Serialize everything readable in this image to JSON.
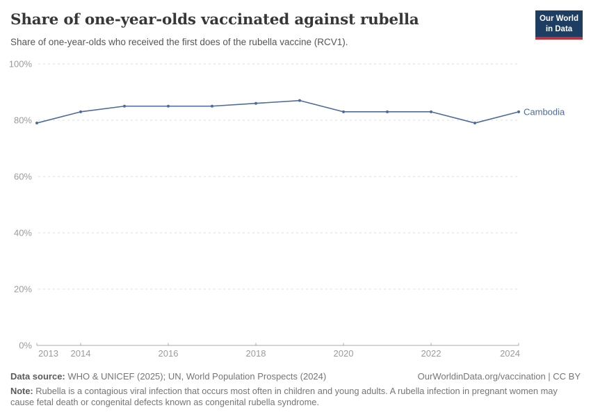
{
  "header": {
    "title": "Share of one-year-olds vaccinated against rubella",
    "subtitle": "Share of one-year-olds who received the first does of the rubella vaccine (RCV1).",
    "logo_line1": "Our World",
    "logo_line2": "in Data",
    "logo_bg_color": "#1d3d63",
    "logo_accent_color": "#c2303c"
  },
  "chart_data": {
    "type": "line",
    "title": "Share of one-year-olds vaccinated against rubella",
    "x": [
      2013,
      2014,
      2015,
      2016,
      2017,
      2018,
      2019,
      2020,
      2021,
      2022,
      2023,
      2024
    ],
    "series": [
      {
        "name": "Cambodia",
        "color": "#4c6a9c",
        "values": [
          79,
          83,
          85,
          85,
          85,
          86,
          87,
          83,
          83,
          83,
          79,
          83
        ]
      }
    ],
    "unit": "%",
    "xlabel": "",
    "ylabel": "",
    "xlim": [
      2013,
      2024
    ],
    "ylim": [
      0,
      100
    ],
    "x_ticks": [
      2013,
      2014,
      2016,
      2018,
      2020,
      2022,
      2024
    ],
    "y_ticks": [
      0,
      20,
      40,
      60,
      80,
      100
    ],
    "y_tick_labels": [
      "0%",
      "20%",
      "40%",
      "60%",
      "80%",
      "100%"
    ],
    "grid": "horizontal-dashed",
    "legend": "end-of-line-label"
  },
  "footer": {
    "datasource_label": "Data source:",
    "datasource_text": "WHO & UNICEF (2025); UN, World Population Prospects (2024)",
    "rights": "OurWorldinData.org/vaccination | CC BY",
    "note_label": "Note:",
    "note_text": "Rubella is a contagious viral infection that occurs most often in children and young adults. A rubella infection in pregnant women may cause fetal death or congenital defects known as congenital rubella syndrome."
  }
}
